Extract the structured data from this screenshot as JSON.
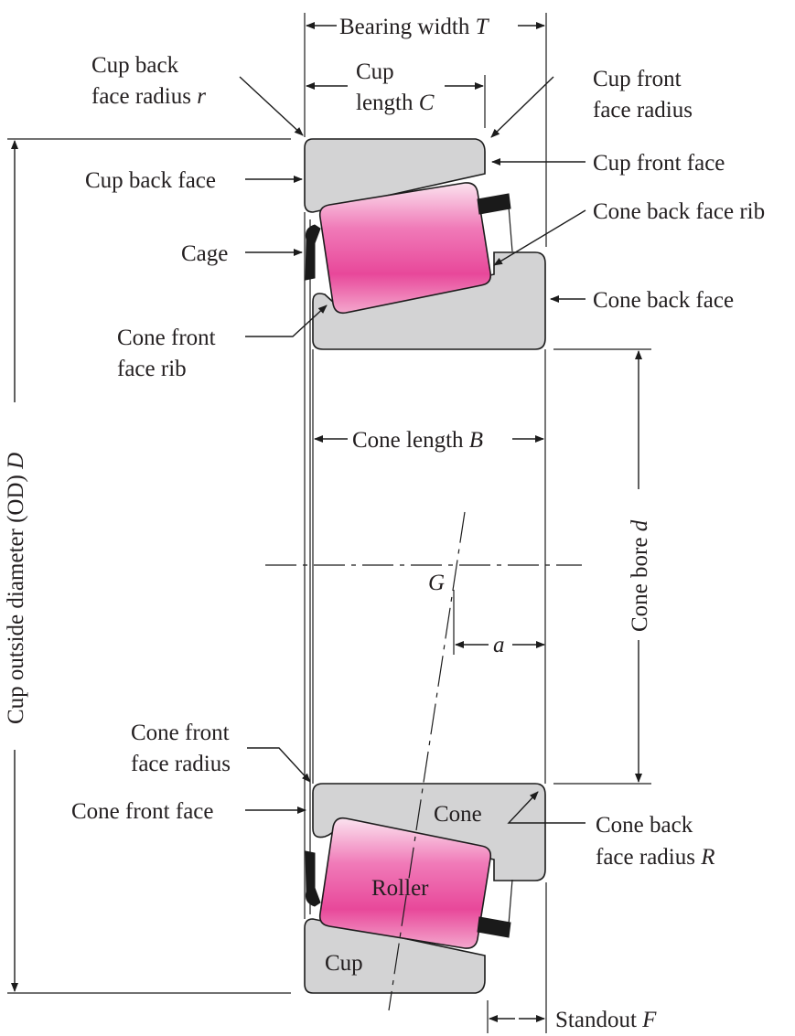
{
  "labels": {
    "bearing_width": {
      "text": "Bearing width ",
      "sym": "T"
    },
    "cup_back_face_radius": {
      "line1": "Cup back",
      "line2": "face radius ",
      "sym": "r"
    },
    "cup_length": {
      "line1": "Cup",
      "line2": "length ",
      "sym": "C"
    },
    "cup_front_face_radius": {
      "line1": "Cup front",
      "line2": "face radius"
    },
    "cup_front_face": "Cup front face",
    "cup_back_face": "Cup back face",
    "cone_back_face_rib": "Cone back face rib",
    "cage": "Cage",
    "cone_back_face": "Cone back face",
    "cone_front_face_rib": {
      "line1": "Cone front",
      "line2": "face rib"
    },
    "cone_length": {
      "text": "Cone length ",
      "sym": "B"
    },
    "cup_od": {
      "text": "Cup outside diameter (OD) ",
      "sym": "D"
    },
    "cone_bore": {
      "text": "Cone bore ",
      "sym": "d"
    },
    "g_point": "G",
    "a_dim": "a",
    "cone_front_face_radius": {
      "line1": "Cone front",
      "line2": "face radius"
    },
    "cone_front_face": "Cone front face",
    "cone": "Cone",
    "cone_back_face_radius": {
      "line1": "Cone back",
      "line2": "face radius ",
      "sym": "R"
    },
    "roller": "Roller",
    "cup": "Cup",
    "standout": {
      "text": "Standout ",
      "sym": "F"
    }
  },
  "colors": {
    "part_fill": "#d3d3d4",
    "roller_pink": "#e8489a",
    "roller_light": "#fbe3ef",
    "cage": "#1a1a1a",
    "ink": "#231f20"
  }
}
